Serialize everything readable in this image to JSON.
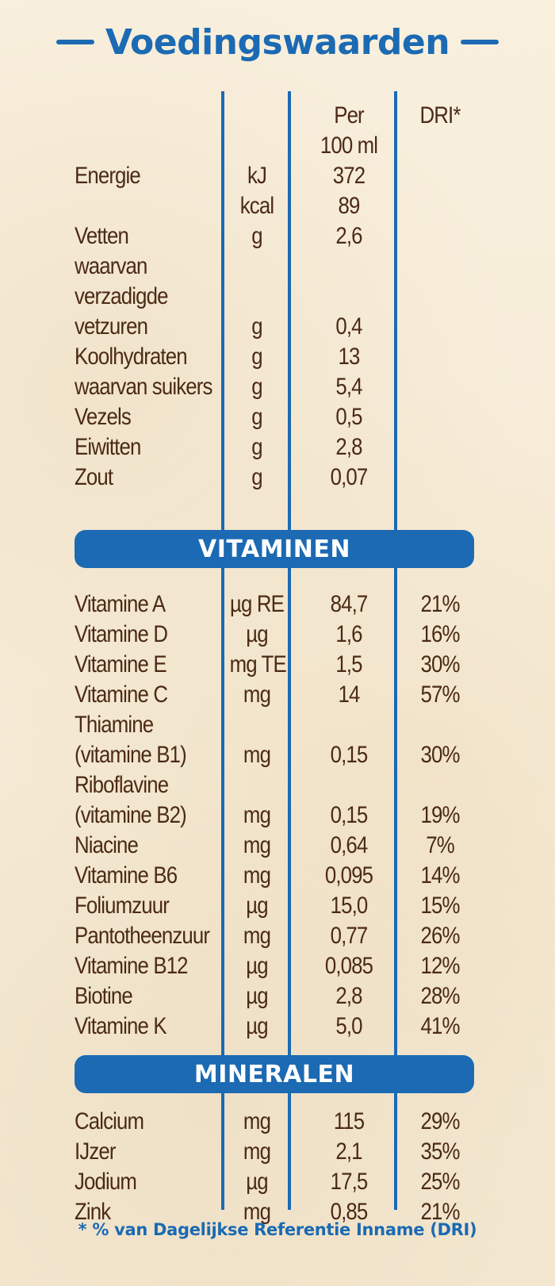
{
  "title": "Voedingswaarden",
  "header": {
    "per": "Per",
    "per_unit": "100 ml",
    "dri": "DRI*"
  },
  "energie": {
    "name": "Energie",
    "unit_kj": "kJ",
    "value_kj": "372",
    "unit_kcal": "kcal",
    "value_kcal": "89"
  },
  "nutrients": [
    {
      "name": "Vetten",
      "unit": "g",
      "value": "2,6"
    },
    {
      "name": "waarvan",
      "unit": "",
      "value": ""
    },
    {
      "name": "verzadigde",
      "unit": "",
      "value": ""
    },
    {
      "name": "vetzuren",
      "unit": "g",
      "value": "0,4"
    },
    {
      "name": "Koolhydraten",
      "unit": "g",
      "value": "13"
    },
    {
      "name": "waarvan suikers",
      "unit": "g",
      "value": "5,4"
    },
    {
      "name": "Vezels",
      "unit": "g",
      "value": "0,5"
    },
    {
      "name": "Eiwitten",
      "unit": "g",
      "value": "2,8"
    },
    {
      "name": "Zout",
      "unit": "g",
      "value": "0,07"
    }
  ],
  "vitaminen_label": "VITAMINEN",
  "vitamins": [
    {
      "name": "Vitamine A",
      "unit": "µg RE",
      "value": "84,7",
      "dri": "21%"
    },
    {
      "name": "Vitamine D",
      "unit": "µg",
      "value": "1,6",
      "dri": "16%"
    },
    {
      "name": "Vitamine E",
      "unit": "mg TE",
      "value": "1,5",
      "dri": "30%"
    },
    {
      "name": "Vitamine C",
      "unit": "mg",
      "value": "14",
      "dri": "57%"
    },
    {
      "name": "Thiamine",
      "unit": "",
      "value": "",
      "dri": ""
    },
    {
      "name": "(vitamine B1)",
      "unit": "mg",
      "value": "0,15",
      "dri": "30%"
    },
    {
      "name": "Riboflavine",
      "unit": "",
      "value": "",
      "dri": ""
    },
    {
      "name": "(vitamine B2)",
      "unit": "mg",
      "value": "0,15",
      "dri": "19%"
    },
    {
      "name": "Niacine",
      "unit": "mg",
      "value": "0,64",
      "dri": "7%"
    },
    {
      "name": "Vitamine B6",
      "unit": "mg",
      "value": "0,095",
      "dri": "14%"
    },
    {
      "name": "Foliumzuur",
      "unit": "µg",
      "value": "15,0",
      "dri": "15%"
    },
    {
      "name": "Pantotheenzuur",
      "unit": "mg",
      "value": "0,77",
      "dri": "26%"
    },
    {
      "name": "Vitamine B12",
      "unit": "µg",
      "value": "0,085",
      "dri": "12%"
    },
    {
      "name": "Biotine",
      "unit": "µg",
      "value": "2,8",
      "dri": "28%"
    },
    {
      "name": "Vitamine K",
      "unit": "µg",
      "value": "5,0",
      "dri": "41%"
    }
  ],
  "mineralen_label": "MINERALEN",
  "minerals": [
    {
      "name": "Calcium",
      "unit": "mg",
      "value": "115",
      "dri": "29%"
    },
    {
      "name": "IJzer",
      "unit": "mg",
      "value": "2,1",
      "dri": "35%"
    },
    {
      "name": "Jodium",
      "unit": "µg",
      "value": "17,5",
      "dri": "25%"
    },
    {
      "name": "Zink",
      "unit": "mg",
      "value": "0,85",
      "dri": "21%"
    }
  ],
  "footnote": "* % van Dagelijkse Referentie Inname (DRI)",
  "colors": {
    "accent": "#1b6ab3",
    "text": "#4b2a17",
    "background": "#f6ecd8"
  }
}
